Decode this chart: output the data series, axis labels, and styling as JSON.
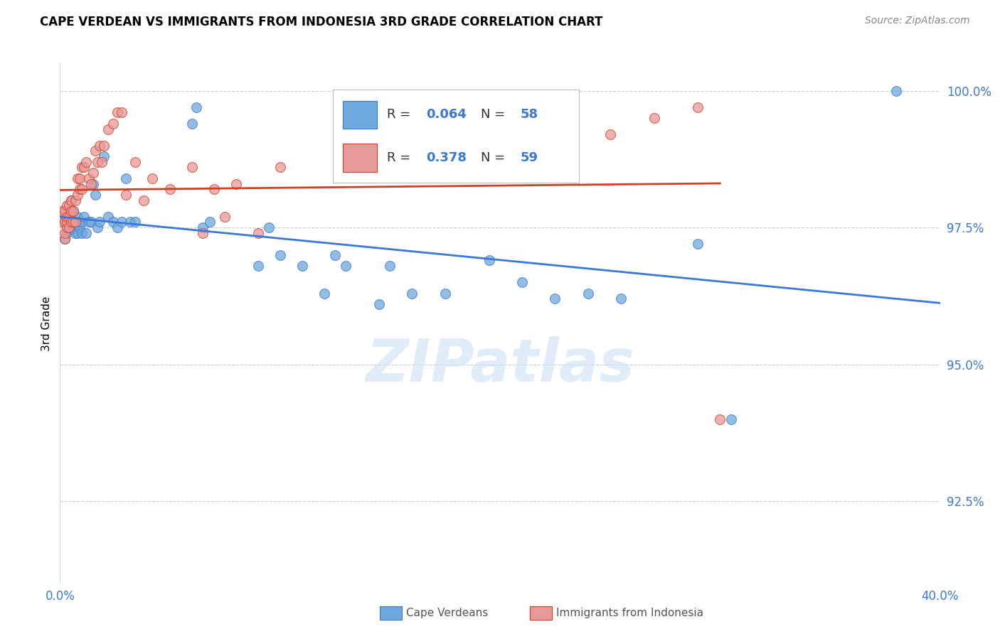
{
  "title": "CAPE VERDEAN VS IMMIGRANTS FROM INDONESIA 3RD GRADE CORRELATION CHART",
  "source": "Source: ZipAtlas.com",
  "ylabel": "3rd Grade",
  "ytick_labels": [
    "92.5%",
    "95.0%",
    "97.5%",
    "100.0%"
  ],
  "ytick_values": [
    0.925,
    0.95,
    0.975,
    1.0
  ],
  "xlim": [
    0.0,
    0.4
  ],
  "ylim": [
    0.91,
    1.005
  ],
  "blue_color": "#6fa8dc",
  "pink_color": "#ea9999",
  "blue_line_color": "#3c78d8",
  "pink_line_color": "#cc4125",
  "legend_R_blue": "0.064",
  "legend_N_blue": "58",
  "legend_R_pink": "0.378",
  "legend_N_pink": "59",
  "legend_label_blue": "Cape Verdeans",
  "legend_label_pink": "Immigrants from Indonesia",
  "watermark": "ZIPatlas",
  "blue_scatter_x": [
    0.002,
    0.003,
    0.003,
    0.004,
    0.004,
    0.005,
    0.005,
    0.005,
    0.006,
    0.006,
    0.006,
    0.007,
    0.007,
    0.008,
    0.008,
    0.009,
    0.009,
    0.01,
    0.01,
    0.011,
    0.012,
    0.013,
    0.014,
    0.015,
    0.016,
    0.017,
    0.018,
    0.02,
    0.022,
    0.024,
    0.026,
    0.028,
    0.03,
    0.032,
    0.034,
    0.06,
    0.062,
    0.065,
    0.068,
    0.09,
    0.095,
    0.1,
    0.11,
    0.12,
    0.125,
    0.13,
    0.145,
    0.15,
    0.16,
    0.175,
    0.195,
    0.21,
    0.225,
    0.24,
    0.255,
    0.29,
    0.305,
    0.38
  ],
  "blue_scatter_y": [
    0.973,
    0.974,
    0.976,
    0.975,
    0.977,
    0.976,
    0.978,
    0.98,
    0.976,
    0.975,
    0.978,
    0.974,
    0.976,
    0.974,
    0.977,
    0.975,
    0.976,
    0.976,
    0.974,
    0.977,
    0.974,
    0.976,
    0.976,
    0.983,
    0.981,
    0.975,
    0.976,
    0.988,
    0.977,
    0.976,
    0.975,
    0.976,
    0.984,
    0.976,
    0.976,
    0.994,
    0.997,
    0.975,
    0.976,
    0.968,
    0.975,
    0.97,
    0.968,
    0.963,
    0.97,
    0.968,
    0.961,
    0.968,
    0.963,
    0.963,
    0.969,
    0.965,
    0.962,
    0.963,
    0.962,
    0.972,
    0.94,
    1.0
  ],
  "pink_scatter_x": [
    0.001,
    0.001,
    0.001,
    0.002,
    0.002,
    0.002,
    0.002,
    0.003,
    0.003,
    0.003,
    0.003,
    0.004,
    0.004,
    0.004,
    0.005,
    0.005,
    0.005,
    0.006,
    0.006,
    0.007,
    0.007,
    0.008,
    0.008,
    0.009,
    0.009,
    0.01,
    0.01,
    0.011,
    0.012,
    0.013,
    0.014,
    0.015,
    0.016,
    0.017,
    0.018,
    0.019,
    0.02,
    0.022,
    0.024,
    0.026,
    0.028,
    0.03,
    0.034,
    0.038,
    0.042,
    0.05,
    0.06,
    0.065,
    0.07,
    0.075,
    0.08,
    0.09,
    0.1,
    0.15,
    0.2,
    0.25,
    0.27,
    0.29,
    0.3
  ],
  "pink_scatter_y": [
    0.976,
    0.977,
    0.978,
    0.973,
    0.974,
    0.976,
    0.978,
    0.975,
    0.976,
    0.977,
    0.979,
    0.975,
    0.977,
    0.979,
    0.976,
    0.978,
    0.98,
    0.976,
    0.978,
    0.98,
    0.976,
    0.981,
    0.984,
    0.982,
    0.984,
    0.986,
    0.982,
    0.986,
    0.987,
    0.984,
    0.983,
    0.985,
    0.989,
    0.987,
    0.99,
    0.987,
    0.99,
    0.993,
    0.994,
    0.996,
    0.996,
    0.981,
    0.987,
    0.98,
    0.984,
    0.982,
    0.986,
    0.974,
    0.982,
    0.977,
    0.983,
    0.974,
    0.986,
    0.994,
    0.986,
    0.992,
    0.995,
    0.997,
    0.94
  ]
}
